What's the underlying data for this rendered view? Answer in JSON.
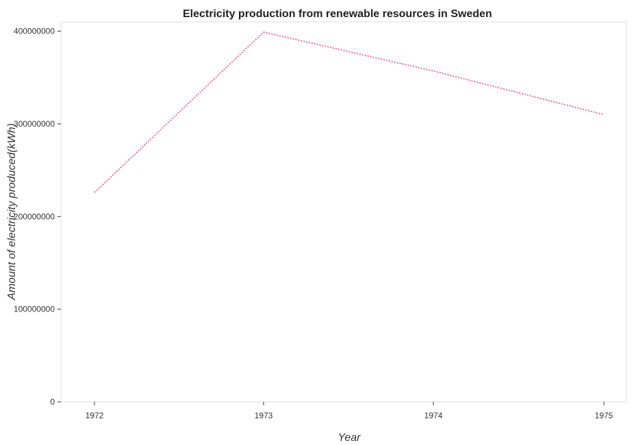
{
  "chart_data": {
    "type": "line",
    "title": "Electricity production from renewable resources in Sweden",
    "xlabel": "Year",
    "ylabel": "Amount of electricity produced(kWh)",
    "categories": [
      "1972",
      "1973",
      "1974",
      "1975"
    ],
    "series": [
      {
        "values": [
          226000000,
          399000000,
          357000000,
          310000000
        ],
        "color": "#e0457b"
      }
    ],
    "yticks": [
      0,
      100000000,
      200000000,
      300000000,
      400000000
    ],
    "ytick_labels": [
      "0",
      "100000000",
      "200000000",
      "300000000",
      "400000000"
    ],
    "ylim": [
      0,
      410000000
    ],
    "grid": false,
    "legend": "none"
  }
}
